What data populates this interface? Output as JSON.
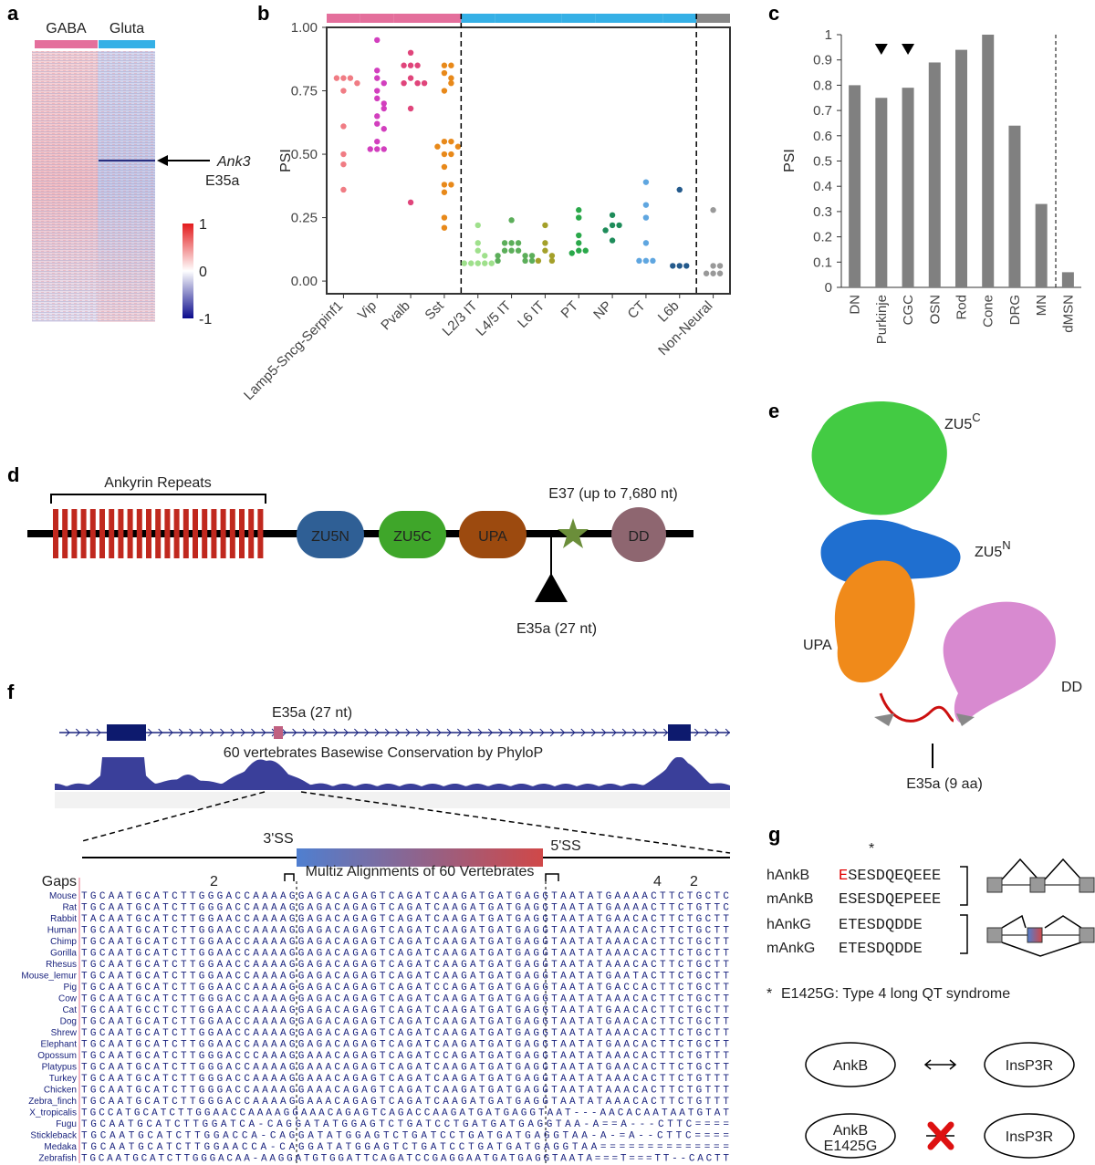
{
  "panel_labels": [
    "a",
    "b",
    "c",
    "d",
    "e",
    "f",
    "g"
  ],
  "chart_data": [
    {
      "type": "strip",
      "y_label": "PSI",
      "ylim": [
        -0.05,
        1.0
      ],
      "yticks": [
        {
          "value": 0,
          "label": "0.00"
        },
        {
          "value": 0.25,
          "label": "0.25"
        },
        {
          "value": 0.5,
          "label": "0.50"
        },
        {
          "value": 0.75,
          "label": "0.75"
        },
        {
          "value": 1,
          "label": "1.00"
        }
      ],
      "series": [
        {
          "name": "Lamp5-Sncg-Serpinf1",
          "color": "#f07c84",
          "group_color": "#e46f9c",
          "values": [
            0.8,
            0.8,
            0.8,
            0.78,
            0.75,
            0.61,
            0.5,
            0.46,
            0.36
          ]
        },
        {
          "name": "Vip",
          "color": "#d23fbe",
          "group_color": "#e46f9c",
          "values": [
            0.95,
            0.83,
            0.8,
            0.78,
            0.75,
            0.72,
            0.7,
            0.68,
            0.65,
            0.62,
            0.6,
            0.55,
            0.52,
            0.52,
            0.52
          ]
        },
        {
          "name": "Pvalb",
          "color": "#e0457b",
          "group_color": "#e46f9c",
          "values": [
            0.9,
            0.85,
            0.85,
            0.85,
            0.8,
            0.78,
            0.78,
            0.78,
            0.68,
            0.31
          ]
        },
        {
          "name": "Sst",
          "color": "#e8891a",
          "group_color": "#e46f9c",
          "values": [
            0.85,
            0.85,
            0.82,
            0.8,
            0.78,
            0.75,
            0.55,
            0.55,
            0.53,
            0.53,
            0.5,
            0.5,
            0.45,
            0.38,
            0.38,
            0.35,
            0.25,
            0.21
          ]
        },
        {
          "name": "L2/3 IT",
          "color": "#9fe08c",
          "group_color": "#35b0e6",
          "values": [
            0.22,
            0.15,
            0.12,
            0.1,
            0.07,
            0.07,
            0.07,
            0.07,
            0.07
          ]
        },
        {
          "name": "L4/5 IT",
          "color": "#5cae5a",
          "group_color": "#35b0e6",
          "values": [
            0.24,
            0.15,
            0.15,
            0.15,
            0.12,
            0.12,
            0.12,
            0.1,
            0.1,
            0.1,
            0.08,
            0.08,
            0.08
          ]
        },
        {
          "name": "L6 IT",
          "color": "#a4a02a",
          "group_color": "#35b0e6",
          "values": [
            0.22,
            0.15,
            0.12,
            0.1,
            0.08,
            0.08
          ]
        },
        {
          "name": "PT",
          "color": "#2aa84a",
          "group_color": "#35b0e6",
          "values": [
            0.28,
            0.25,
            0.18,
            0.15,
            0.12,
            0.12,
            0.11
          ]
        },
        {
          "name": "NP",
          "color": "#1e8c5a",
          "group_color": "#35b0e6",
          "values": [
            0.26,
            0.22,
            0.22,
            0.2,
            0.16
          ]
        },
        {
          "name": "CT",
          "color": "#5fa6e0",
          "group_color": "#35b0e6",
          "values": [
            0.39,
            0.3,
            0.25,
            0.15,
            0.08,
            0.08,
            0.08
          ]
        },
        {
          "name": "L6b",
          "color": "#245a8c",
          "group_color": "#35b0e6",
          "values": [
            0.36,
            0.06,
            0.06,
            0.06
          ]
        },
        {
          "name": "Non-Neural",
          "color": "#999999",
          "group_color": "#888888",
          "values": [
            0.28,
            0.06,
            0.06,
            0.03,
            0.03,
            0.03
          ]
        }
      ]
    },
    {
      "type": "bar",
      "y_label": "PSI",
      "color": "#808080",
      "ylim": [
        0,
        1
      ],
      "yticks": [
        0,
        0.1,
        0.2,
        0.3,
        0.4,
        0.5,
        0.6,
        0.7,
        0.8,
        0.9,
        1
      ],
      "categories": [
        "DN",
        "Purkinje",
        "CGC",
        "OSN",
        "Rod",
        "Cone",
        "DRG",
        "MN",
        "dMSN"
      ],
      "values": [
        0.8,
        0.75,
        0.79,
        0.89,
        0.94,
        1.0,
        0.64,
        0.33,
        0.06
      ],
      "highlight": [
        false,
        true,
        true,
        false,
        false,
        false,
        false,
        false,
        false
      ]
    }
  ],
  "heatmap": {
    "group_labels": [
      "GABA",
      "Gluta"
    ],
    "group_colors": [
      "#e46f9c",
      "#35b0e6"
    ],
    "gene": "Ank3",
    "exon": "E35a",
    "colorbar_lim": [
      -1,
      1
    ],
    "colorbar_ticks": [
      1,
      0,
      -1
    ]
  },
  "domain_diagram": {
    "repeats_label": "Ankyrin Repeats",
    "domains": [
      {
        "name": "ZU5N",
        "color": "#2f5f95"
      },
      {
        "name": "ZU5C",
        "color": "#3fa62a"
      },
      {
        "name": "UPA",
        "color": "#9c4a0f"
      },
      {
        "name": "DD",
        "color": "#8e6670"
      }
    ],
    "e37_label": "E37 (up to 7,680 nt)",
    "e35a_label": "E35a (27 nt)"
  },
  "structure": {
    "zu5c_base": "ZU5",
    "zu5c_sup": "C",
    "zu5n_base": "ZU5",
    "zu5n_sup": "N",
    "upa": "UPA",
    "dd": "DD",
    "e35a": "E35a (9 aa)"
  },
  "alignment": {
    "exon_label": "E35a (27 nt)",
    "track_label": "60 vertebrates Basewise Conservation by PhyloP",
    "ss3": "3'SS",
    "ss5": "5'SS",
    "multiz_label": "Multiz Alignments of 60 Vertebrates",
    "gaps_label": "Gaps",
    "gap_marks": [
      "2",
      "4",
      "2"
    ],
    "rows": [
      {
        "species": "Mouse",
        "seq": "TGCAATGCATCTTGGGACCAAAAGGAGACAGAGTCAGATCAAGATGATGAGGTAATATGAAAACTTCTGCTC"
      },
      {
        "species": "Rat",
        "seq": "TGCAATGCATCTTGGGACCAAAAGGAGACAGAGTCAGATCAAGATGATGAGGTAATATGAAAACTTCTGTTC"
      },
      {
        "species": "Rabbit",
        "seq": "TACAATGCATCTTGGAACCAAAAGGAGACAGAGTCAGATCAAGATGATGAGGTAATATGAACACTTCTGCTT"
      },
      {
        "species": "Human",
        "seq": "TGCAATGCATCTTGGAACCAAAAGGAGACAGAGTCAGATCAAGATGATGAGGTAATATAAACACTTCTGCTT"
      },
      {
        "species": "Chimp",
        "seq": "TGCAATGCATCTTGGAACCAAAAGGAGACAGAGTCAGATCAAGATGATGAGGTAATATAAACACTTCTGCTT"
      },
      {
        "species": "Gorilla",
        "seq": "TGCAATGCATCTTGGAACCAAAAGGAGACAGAGTCAGATCAAGATGATGAGGTAATATAAACACTTCTGCTT"
      },
      {
        "species": "Rhesus",
        "seq": "TGCAATGCATCTTGGAACCAAAAGGAGACAGAGTCAGATCAAGATGATGAGGTAATATAAACACTTCTGCTT"
      },
      {
        "species": "Mouse_lemur",
        "seq": "TGCAATGCATCTTGGAACCAAAAGGAGACAGAGTCAGATCAAGATGATGAGGTAATATGAATACTTCTGCTT"
      },
      {
        "species": "Pig",
        "seq": "TGCAATGCATCTTGGAACCAAAAGGAGACAGAGTCAGATCCAGATGATGAGGTAATATGACCACTTCTGCTT"
      },
      {
        "species": "Cow",
        "seq": "TGCAATGCATCTTGGGACCAAAAGGAGACAGAGTCAGATCAAGATGATGAGGTAATATAAACACTTCTGCTT"
      },
      {
        "species": "Cat",
        "seq": "TGCAATGCCTCTTGGAACCAAAAGGAGACAGAGTCAGATCAAGATGATGAGGTAATATGAACACTTCTGCTT"
      },
      {
        "species": "Dog",
        "seq": "TGCAATGCATCTTGGAACCAAAAGGAGACAGAGTCAGATCAAGATGATGAGGTAATATGAACACTTCTGCTT"
      },
      {
        "species": "Shrew",
        "seq": "TGCAATGCATCTTGGAACCAAAAGGAGACAGAGTCAGATCAAGATGATGAGGTAATATAAACACTTCTGCTT"
      },
      {
        "species": "Elephant",
        "seq": "TGCAATGCATCTTGGAACCAAAAGGAGACAGAGTCAGATCAAGATGATGAGGTAATATGAACACTTCTGCTT"
      },
      {
        "species": "Opossum",
        "seq": "TGCAATGCATCTTGGGACCCAAAGGAAACAGAGTCAGATCCAGATGATGAGGTAATATAAACACTTCTGTTT"
      },
      {
        "species": "Platypus",
        "seq": "TGCAATGCATCTTGGGACCAAAAGGAAACAGAGTCAGATCAAGATGATGAGGTAATATGAACACTTCTGCTT"
      },
      {
        "species": "Turkey",
        "seq": "TGCAATGCATCTTGGGACCAAAAGGAAACAGAGTCAGATCAAGATGATGAGGTAATATAAACACTTCTGTTT"
      },
      {
        "species": "Chicken",
        "seq": "TGCAATGCATCTTGGGACCAAAAGGAAACAGAGTCAGATCAAGATGATGAGGTAATATAAACACTTCTGTTT"
      },
      {
        "species": "Zebra_finch",
        "seq": "TGCAATGCATCTTGGGACCAAAAGGAAACAGAGTCAGATCAAGATGATGAGGTAATATAAACACTTCTGTTT"
      },
      {
        "species": "X_tropicalis",
        "seq": "TGCCATGCATCTTGGAACCAAAAGGAAACAGAGTCAGACCAAGATGATGAGGTAAT---AACACAATAATGTAT"
      },
      {
        "species": "Fugu",
        "seq": "TGCAATGCATCTTGGATCA-CAGGATATGGAGTCTGATCCTGATGATGAGGTAA-A==A---CTTC===="
      },
      {
        "species": "Stickleback",
        "seq": "TGCAATGCATCTTGGACCA-CAGGATATGGAGTCTGATCCTGATGATGAGGTAA-A-=A--CTTC===="
      },
      {
        "species": "Medaka",
        "seq": "TGCAATGCATCTTGGAACCA-CAGGATATGGAGTCTGATCCTGATGATGAGGTAA=============="
      },
      {
        "species": "Zebrafish",
        "seq": "TGCAATGCATCTTGGGACAA-AAGGATGTGGATTCAGATCCGAGGAATGATGAGGTAATA===T===TT--CACTT"
      }
    ]
  },
  "sequence_panel": {
    "asterisk": "*",
    "rows": [
      {
        "name": "hAnkB",
        "mutated": "E",
        "rest": "SESDQEQEEE"
      },
      {
        "name": "mAnkB",
        "seq": "ESESDQEPEEE"
      },
      {
        "name": "hAnkG",
        "seq": "ETESDQDDE"
      },
      {
        "name": "mAnkG",
        "seq": "ETESDQDDE"
      }
    ],
    "note_mark": "*",
    "note": "E1425G: Type 4 long QT syndrome",
    "nodes": [
      "AnkB",
      "InsP3R",
      "AnkB",
      "InsP3R"
    ],
    "mutant_label": "E1425G"
  }
}
